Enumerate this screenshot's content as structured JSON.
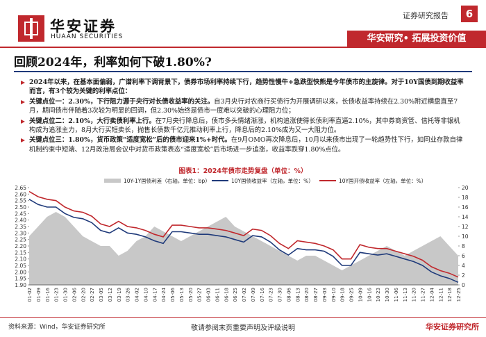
{
  "header": {
    "brand": "华安证券",
    "brand_en": "HUAAN SECURITIES",
    "report_type": "证券研究报告",
    "page_number": "6",
    "slogan": "华安研究• 拓展投资价值"
  },
  "title": "回顾2024年，利率如何下破1.80%?",
  "bullets": [
    {
      "bold": "2024年以来，在基本面偏弱，广谱利率下调背景下，债券市场利率持续下行，趋势性慢牛+急跌型快熊是今年债市的主旋律。对于10Y国债到期收益率而言，有3个较为关键的利率点位：",
      "text": ""
    },
    {
      "bold": "关键点位一：2.30%，下行阻力源于央行对长债收益率的关注。",
      "text": "自3月央行对农商行买债行为开展调研以来，长债收益率持续在2.30%附近横盘直至7月，期间债市伴随着3次较为明显的回调，但2.30%始终是债市一度难以突破的心理阻力位；"
    },
    {
      "bold": "关键点位二：2.10%，大行卖债利率上行。",
      "text": "在7月央行降息后，债市多头情绪渐涨，机构追涨使得长债利率直逼2.10%，其中券商资管、信托等非银机构成为追涨主力，8月大行买短卖长，抛售长债数千亿元推动利率上行，降息后的2.10%成为又一大阻力位。"
    },
    {
      "bold": "关键点位三：1.80%，货币政策“适度宽松”后的债市迎来1%+时代。",
      "text": "在9月OMO再次降息后，10月以来债市出现了一轮趋势性下行，如同业存款自律机制约束中短端、12月政治局会议中对货币政策表态“适度宽松”后市场进一步追涨，收益率跌穿1.80%点位。"
    }
  ],
  "chart_data": {
    "type": "line",
    "title": "图表1：2024年债市走势复盘（单位：%）",
    "categories": [
      "01-02",
      "01-09",
      "01-16",
      "01-23",
      "01-30",
      "02-06",
      "02-20",
      "02-27",
      "03-05",
      "03-12",
      "03-19",
      "03-26",
      "04-02",
      "04-10",
      "04-17",
      "04-24",
      "05-06",
      "05-13",
      "05-20",
      "05-27",
      "06-03",
      "06-11",
      "06-18",
      "06-25",
      "07-02",
      "07-09",
      "07-16",
      "07-23",
      "07-30",
      "08-06",
      "08-13",
      "08-20",
      "08-27",
      "09-03",
      "09-10",
      "09-18",
      "09-25",
      "10-09",
      "10-16",
      "10-23",
      "10-30",
      "11-06",
      "11-13",
      "11-20",
      "11-27",
      "12-04",
      "12-11",
      "12-18",
      "12-25"
    ],
    "series": [
      {
        "name": "10Y-1Y国债利差（右轴，单位：bp）",
        "color": "#c8c8c8",
        "axis": "y2",
        "kind": "area",
        "values": [
          10,
          12,
          14,
          15,
          14,
          12,
          10,
          9,
          8,
          8,
          6,
          7,
          9,
          10,
          12,
          11,
          10,
          9,
          10,
          11,
          12,
          13,
          14,
          12,
          11,
          10,
          9,
          8,
          7,
          6,
          5,
          6,
          6,
          5,
          4,
          3,
          4,
          5,
          6,
          7,
          8,
          7,
          6,
          7,
          8,
          9,
          10,
          8,
          6
        ]
      },
      {
        "name": "10Y国债收益率（左轴，单位：%）",
        "color": "#1f3a7a",
        "kind": "line",
        "values": [
          2.56,
          2.52,
          2.5,
          2.5,
          2.45,
          2.42,
          2.41,
          2.38,
          2.32,
          2.3,
          2.34,
          2.3,
          2.29,
          2.27,
          2.24,
          2.22,
          2.31,
          2.31,
          2.3,
          2.29,
          2.29,
          2.28,
          2.27,
          2.25,
          2.23,
          2.28,
          2.27,
          2.23,
          2.17,
          2.13,
          2.18,
          2.17,
          2.17,
          2.16,
          2.12,
          2.05,
          2.05,
          2.15,
          2.14,
          2.13,
          2.14,
          2.12,
          2.1,
          2.08,
          2.05,
          2.0,
          1.97,
          1.95,
          1.92
        ]
      },
      {
        "name": "10Y国开债收益率（左轴，单位：%）",
        "color": "#c0282d",
        "kind": "line",
        "values": [
          2.62,
          2.58,
          2.56,
          2.55,
          2.5,
          2.47,
          2.46,
          2.43,
          2.37,
          2.35,
          2.39,
          2.35,
          2.34,
          2.32,
          2.29,
          2.27,
          2.36,
          2.36,
          2.35,
          2.34,
          2.34,
          2.33,
          2.32,
          2.3,
          2.28,
          2.33,
          2.32,
          2.28,
          2.22,
          2.18,
          2.24,
          2.23,
          2.22,
          2.2,
          2.17,
          2.1,
          2.1,
          2.21,
          2.19,
          2.18,
          2.18,
          2.16,
          2.14,
          2.12,
          2.09,
          2.04,
          2.01,
          1.99,
          1.96
        ]
      }
    ],
    "ylim": [
      1.9,
      2.65
    ],
    "yticks": [
      {
        "value": 1.9,
        "label": "1.90"
      },
      {
        "value": 1.95,
        "label": "1.95"
      },
      {
        "value": 2.0,
        "label": "2.00"
      },
      {
        "value": 2.05,
        "label": "2.05"
      },
      {
        "value": 2.1,
        "label": "2.10"
      },
      {
        "value": 2.15,
        "label": "2.15"
      },
      {
        "value": 2.2,
        "label": "2.20"
      },
      {
        "value": 2.25,
        "label": "2.25"
      },
      {
        "value": 2.3,
        "label": "2.30"
      },
      {
        "value": 2.35,
        "label": "2.35"
      },
      {
        "value": 2.4,
        "label": "2.40"
      },
      {
        "value": 2.45,
        "label": "2.45"
      },
      {
        "value": 2.5,
        "label": "2.50"
      },
      {
        "value": 2.55,
        "label": "2.55"
      },
      {
        "value": 2.6,
        "label": "2.60"
      },
      {
        "value": 2.65,
        "label": "2.65"
      }
    ],
    "y2lim": [
      0,
      20
    ],
    "y2ticks": [
      0,
      2,
      4,
      6,
      8,
      10,
      12,
      14,
      16,
      18,
      20
    ],
    "legend": "top"
  },
  "footer": {
    "source": "资料来源：Wind，华安证券研究所",
    "disclaimer": "敬请参阅末页重要声明及评级说明",
    "institute": "华安证券研究所"
  }
}
